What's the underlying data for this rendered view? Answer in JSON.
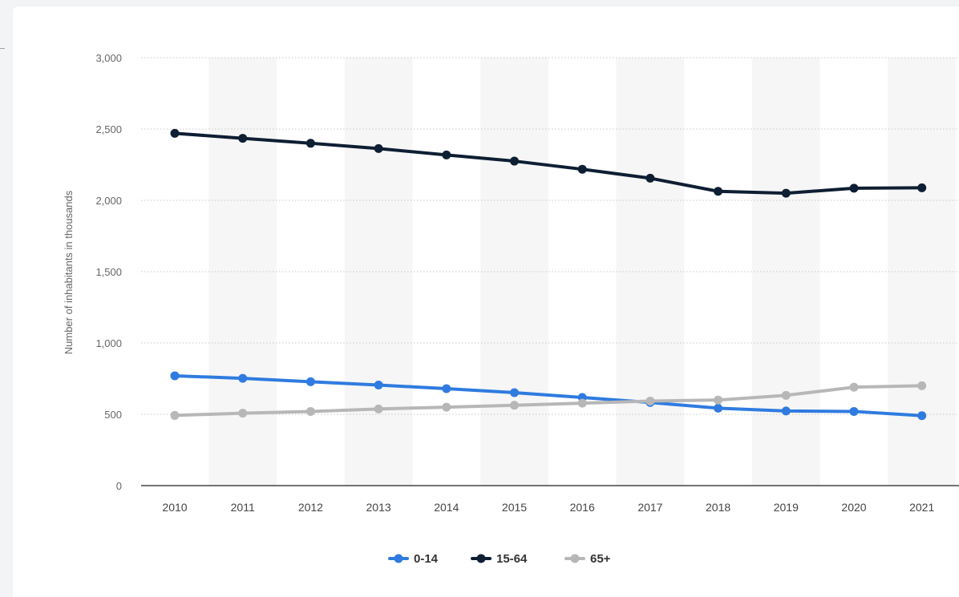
{
  "chart_data": {
    "type": "line",
    "title": "",
    "xlabel": "",
    "ylabel": "Number of inhabitants in thousands",
    "categories": [
      "2010",
      "2011",
      "2012",
      "2013",
      "2014",
      "2015",
      "2016",
      "2017",
      "2018",
      "2019",
      "2020",
      "2021"
    ],
    "ylim": [
      0,
      3000
    ],
    "yticks": [
      0,
      500,
      1000,
      1500,
      2000,
      2500,
      3000
    ],
    "ytick_labels": [
      "0",
      "500",
      "1,000",
      "1,500",
      "2,000",
      "2,500",
      "3,000"
    ],
    "grid": true,
    "legend_position": "bottom-center",
    "series": [
      {
        "name": "0-14",
        "color": "#2f7be0",
        "values": [
          770,
          752,
          728,
          705,
          680,
          652,
          618,
          583,
          543,
          523,
          520,
          490
        ]
      },
      {
        "name": "15-64",
        "color": "#0e1e33",
        "values": [
          2470,
          2435,
          2400,
          2363,
          2318,
          2275,
          2218,
          2155,
          2063,
          2050,
          2085,
          2088
        ]
      },
      {
        "name": "65+",
        "color": "#b7b7b7",
        "values": [
          492,
          508,
          520,
          537,
          550,
          563,
          578,
          593,
          600,
          633,
          690,
          700
        ]
      }
    ]
  }
}
